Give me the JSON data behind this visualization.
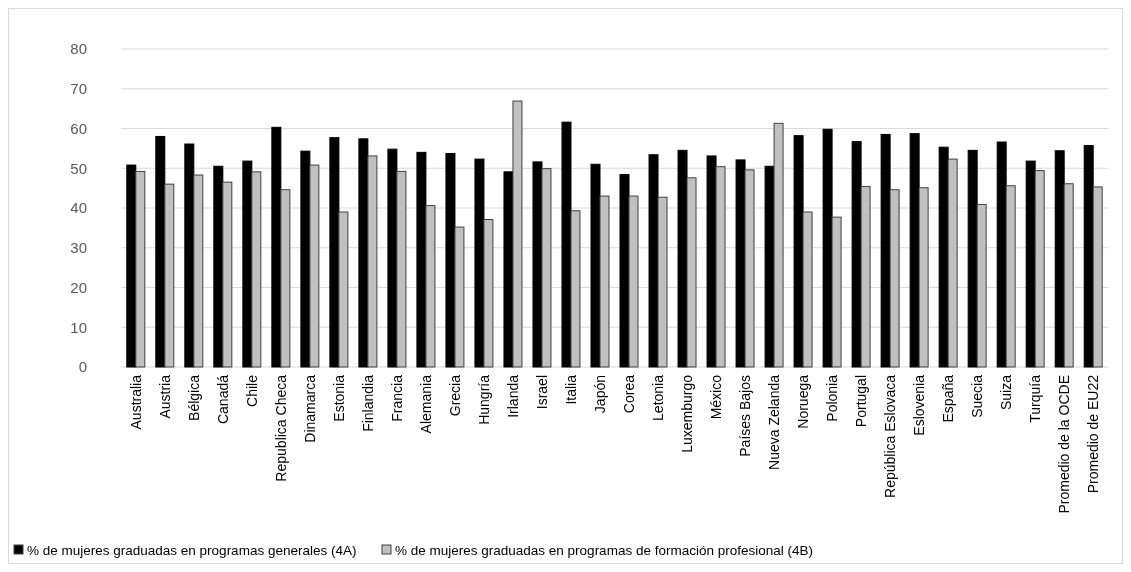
{
  "chart_data": {
    "type": "bar",
    "categories": [
      "Australia",
      "Austria",
      "Bélgica",
      "Canadá",
      "Chile",
      "Republica Checa",
      "Dinamarca",
      "Estonia",
      "Finlandia",
      "Francia",
      "Alemania",
      "Grecia",
      "Hungría",
      "Irlanda",
      "Israel",
      "Italia",
      "Japón",
      "Corea",
      "Letonia",
      "Luxemburgo",
      "México",
      "Países Bajos",
      "Nueva Zelanda",
      "Noruega",
      "Polonia",
      "Portugal",
      "República Eslovaca",
      "Eslovenia",
      "España",
      "Suecia",
      "Suiza",
      "Turquía",
      "Promedio de la OCDE",
      "Promedio de EU22"
    ],
    "series": [
      {
        "name": "% de mujeres graduadas en programas generales (4A)",
        "color": "#000000",
        "values": [
          50.8,
          58,
          56.1,
          50.5,
          51.8,
          60.3,
          54.3,
          57.7,
          57.4,
          54.8,
          54,
          53.7,
          52.3,
          49.1,
          51.6,
          61.6,
          51,
          48.4,
          53.4,
          54.5,
          53.1,
          52.1,
          50.5,
          58.2,
          59.8,
          56.7,
          58.5,
          58.7,
          55.3,
          54.5,
          56.6,
          51.8,
          54.4,
          55.7
        ]
      },
      {
        "name": "% de mujeres graduadas en programas de formación profesional (4B)",
        "color": "#c0c0c0",
        "values": [
          49.2,
          46,
          48.3,
          46.5,
          49.1,
          44.6,
          50.8,
          39,
          53.1,
          49.2,
          40.6,
          35.2,
          37.1,
          66.9,
          49.9,
          39.3,
          43,
          43,
          42.7,
          47.6,
          50.4,
          49.6,
          61.3,
          39,
          37.7,
          45.4,
          44.6,
          45.1,
          52.3,
          40.9,
          45.6,
          49.4,
          46.1,
          45.3
        ]
      }
    ],
    "ylim": [
      0,
      80
    ],
    "yticks": [
      0,
      10,
      20,
      30,
      40,
      50,
      60,
      70,
      80
    ],
    "grid": "y",
    "legend": "bottom left"
  }
}
